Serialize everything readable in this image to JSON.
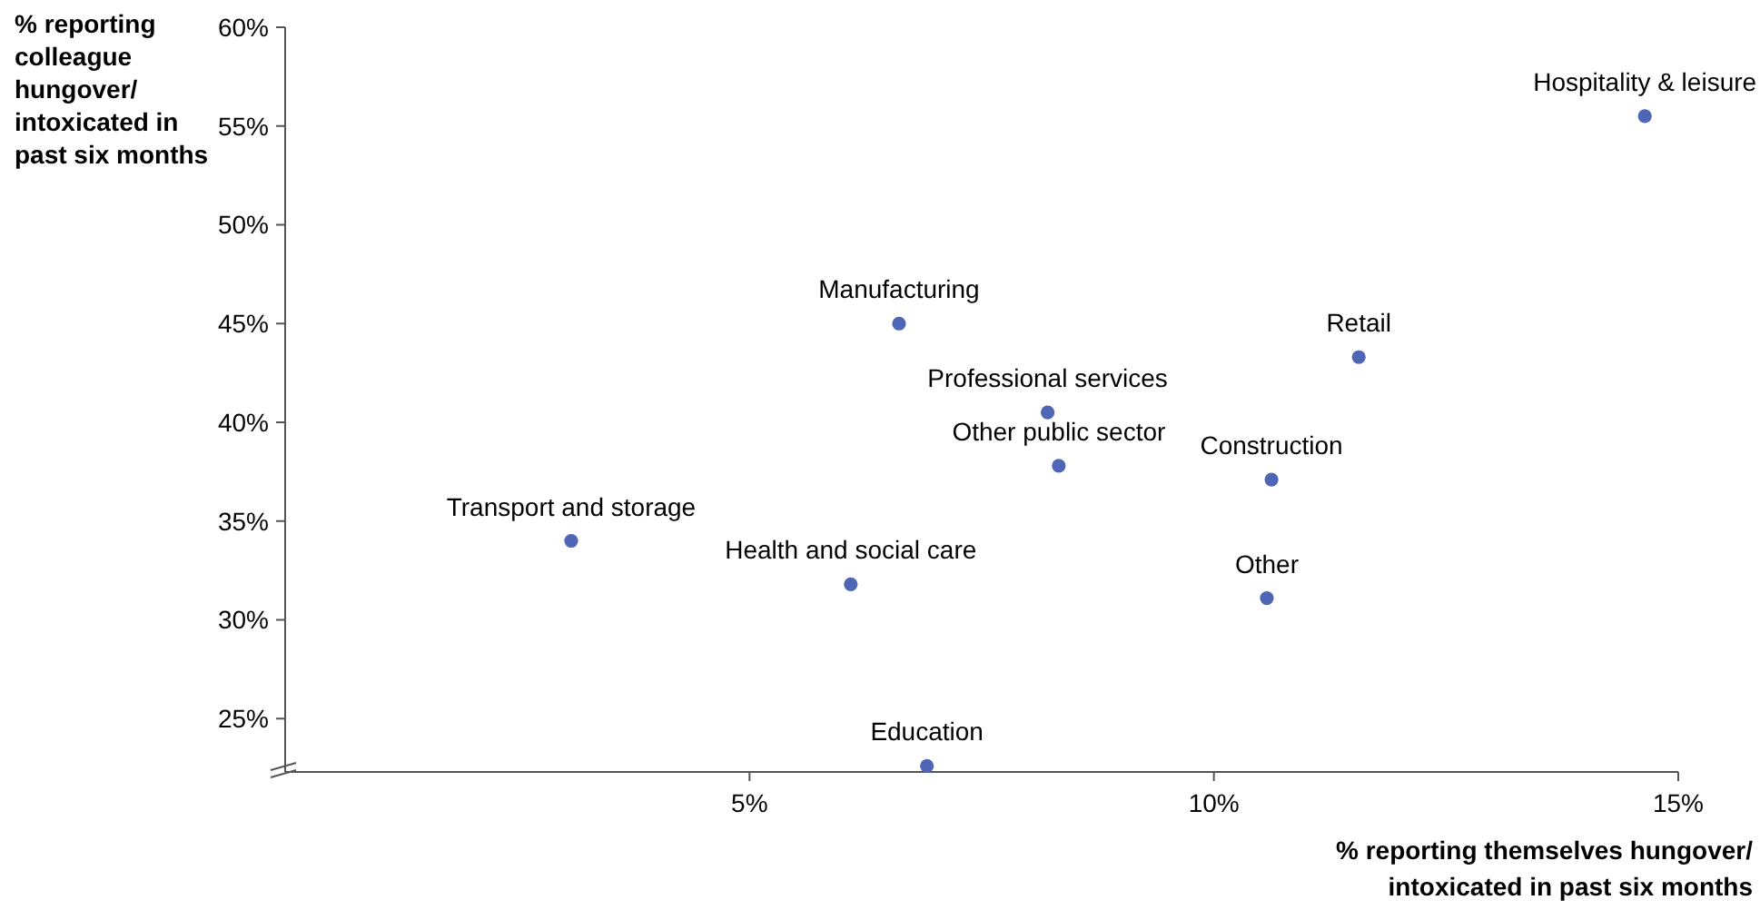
{
  "chart_data": {
    "type": "scatter",
    "xlabel": "% reporting themselves hungover/ intoxicated in past six months",
    "ylabel": "% reporting colleague hungover/ intoxicated in past six months",
    "series": [
      {
        "color": "#4f65b5",
        "x": [
          14.64,
          11.56,
          6.61,
          8.21,
          8.33,
          10.62,
          3.08,
          6.09,
          10.57,
          6.91
        ],
        "values": [
          55.5,
          43.3,
          45.0,
          40.5,
          37.8,
          37.1,
          34.0,
          31.8,
          31.1,
          22.6
        ]
      }
    ],
    "xlim": [
      0,
      15
    ],
    "ylim": [
      22.3,
      60
    ],
    "xticks": [
      {
        "value": 5,
        "label": "5%"
      },
      {
        "value": 10,
        "label": "10%"
      },
      {
        "value": 15,
        "label": "15%"
      }
    ],
    "yticks": [
      {
        "value": 25,
        "label": "25%"
      },
      {
        "value": 30,
        "label": "30%"
      },
      {
        "value": 35,
        "label": "35%"
      },
      {
        "value": 40,
        "label": "40%"
      },
      {
        "value": 45,
        "label": "45%"
      },
      {
        "value": 50,
        "label": "50%"
      },
      {
        "value": 55,
        "label": "55%"
      },
      {
        "value": 60,
        "label": "60%"
      }
    ],
    "marker": "circle",
    "grid": false,
    "annotations": [
      {
        "text": "Hospitality & leisure",
        "x": 14.64,
        "y": 55.5
      },
      {
        "text": "Retail",
        "x": 11.56,
        "y": 43.3
      },
      {
        "text": "Manufacturing",
        "x": 6.61,
        "y": 45.0
      },
      {
        "text": "Professional services",
        "x": 8.21,
        "y": 40.5
      },
      {
        "text": "Other public sector",
        "x": 8.33,
        "y": 37.8
      },
      {
        "text": "Construction",
        "x": 10.62,
        "y": 37.1
      },
      {
        "text": "Transport and storage",
        "x": 3.08,
        "y": 34.0
      },
      {
        "text": "Health and social care",
        "x": 6.09,
        "y": 31.8
      },
      {
        "text": "Other",
        "x": 10.57,
        "y": 31.1
      },
      {
        "text": "Education",
        "x": 6.91,
        "y": 22.6
      }
    ]
  }
}
